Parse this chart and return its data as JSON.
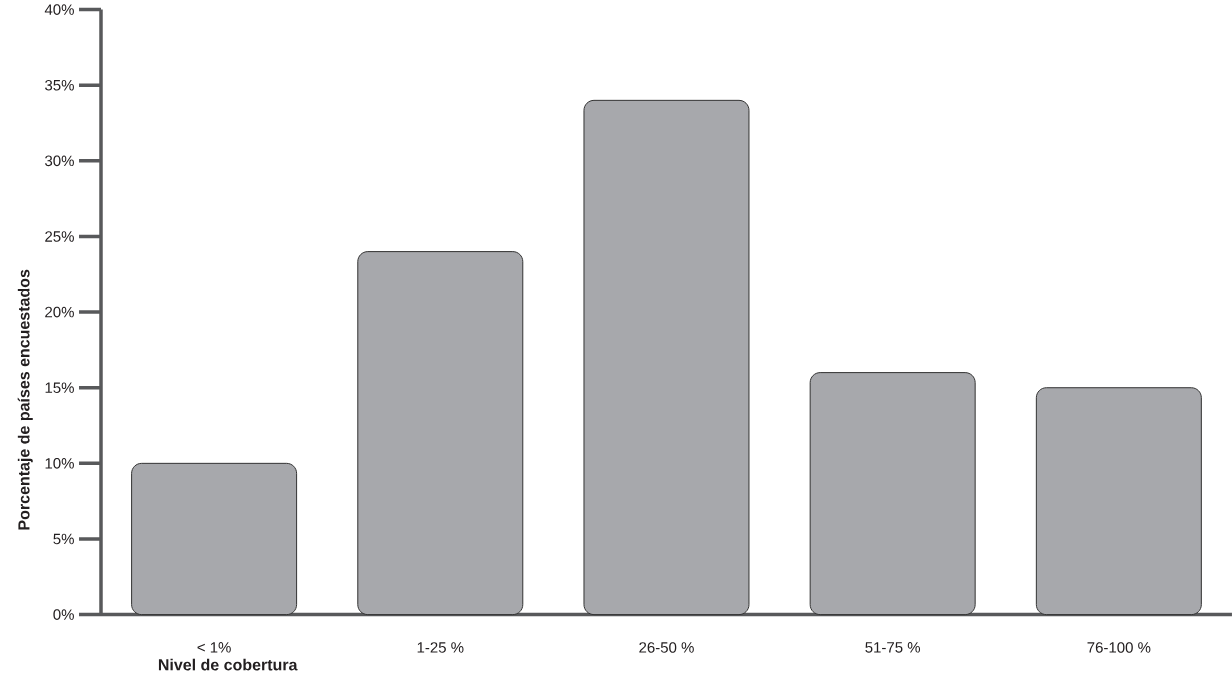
{
  "chart_data": {
    "type": "bar",
    "xlabel": "Nivel de cobertura",
    "ylabel": "Porcentaje de países encuestados",
    "categories": [
      "< 1%",
      "1-25 %",
      "26-50 %",
      "51-75 %",
      "76-100 %"
    ],
    "values": [
      10,
      24,
      34,
      16,
      15
    ],
    "color": "#a7a8ac",
    "ylim": [
      0,
      40
    ],
    "yticks": [
      {
        "value": 0,
        "label": "0%"
      },
      {
        "value": 5,
        "label": "5%"
      },
      {
        "value": 10,
        "label": "10%"
      },
      {
        "value": 15,
        "label": "15%"
      },
      {
        "value": 20,
        "label": "20%"
      },
      {
        "value": 25,
        "label": "25%"
      },
      {
        "value": 30,
        "label": "30%"
      },
      {
        "value": 35,
        "label": "35%"
      },
      {
        "value": 40,
        "label": "40%"
      }
    ]
  }
}
